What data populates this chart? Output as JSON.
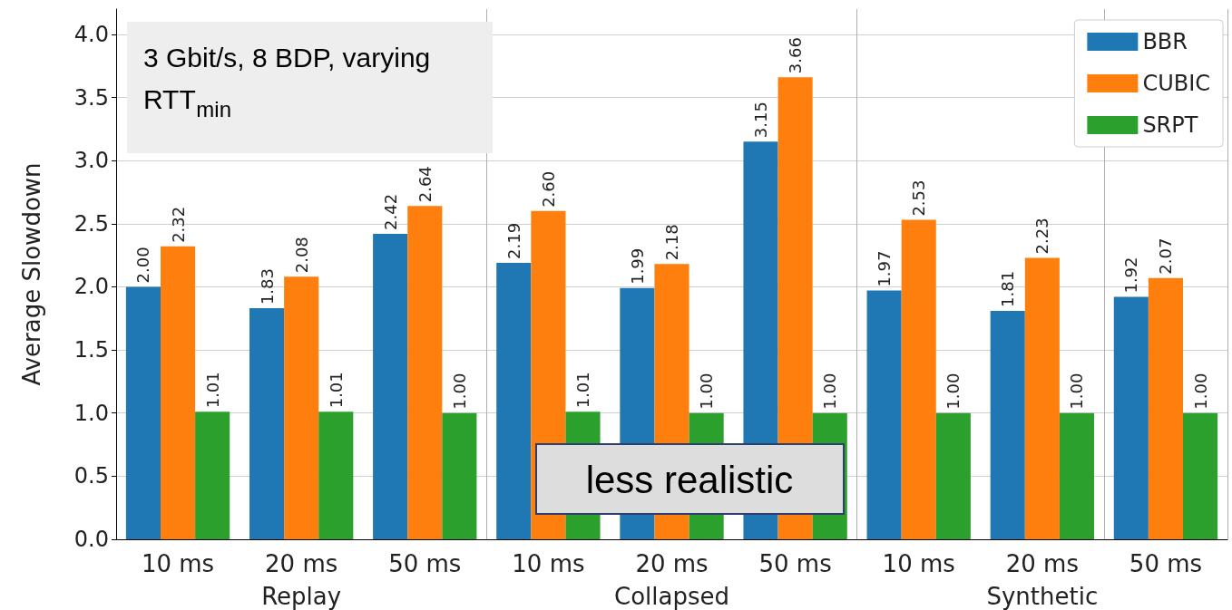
{
  "chart_data": {
    "type": "bar",
    "ylabel": "Average Slowdown",
    "categories": [
      "10 ms",
      "20 ms",
      "50 ms",
      "10 ms",
      "20 ms",
      "50 ms",
      "10 ms",
      "20 ms",
      "50 ms"
    ],
    "series": [
      {
        "name": "BBR",
        "color": "#1f77b4",
        "values": [
          2.0,
          1.83,
          2.42,
          2.19,
          1.99,
          3.15,
          1.97,
          1.81,
          1.92
        ],
        "value_labels": [
          "2.00",
          "1.83",
          "2.42",
          "2.19",
          "1.99",
          "3.15",
          "1.97",
          "1.81",
          "1.92"
        ]
      },
      {
        "name": "CUBIC",
        "color": "#ff7f0e",
        "values": [
          2.32,
          2.08,
          2.64,
          2.6,
          2.18,
          3.66,
          2.53,
          2.23,
          2.07
        ],
        "value_labels": [
          "2.32",
          "2.08",
          "2.64",
          "2.60",
          "2.18",
          "3.66",
          "2.53",
          "2.23",
          "2.07"
        ]
      },
      {
        "name": "SRPT",
        "color": "#2ca02c",
        "values": [
          1.01,
          1.01,
          1.0,
          1.01,
          1.0,
          1.0,
          1.0,
          1.0,
          1.0
        ],
        "value_labels": [
          "1.01",
          "1.01",
          "1.00",
          "1.01",
          "1.00",
          "1.00",
          "1.00",
          "1.00",
          "1.00"
        ]
      }
    ],
    "ylim": [
      0,
      4.2
    ],
    "yticks": [
      {
        "value": 0,
        "label": "0.0"
      },
      {
        "value": 0.5,
        "label": "0.5"
      },
      {
        "value": 1,
        "label": "1.0"
      },
      {
        "value": 1.5,
        "label": "1.5"
      },
      {
        "value": 2,
        "label": "2.0"
      },
      {
        "value": 2.5,
        "label": "2.5"
      },
      {
        "value": 3,
        "label": "3.0"
      },
      {
        "value": 3.5,
        "label": "3.5"
      },
      {
        "value": 4,
        "label": "4.0"
      }
    ],
    "grid": true,
    "legend": "top right",
    "annotations": [
      "3 Gbit/s, 8 BDP, varying RTT$_{min}$",
      "less realistic",
      "Replay",
      "Collapsed",
      "Synthetic"
    ]
  }
}
